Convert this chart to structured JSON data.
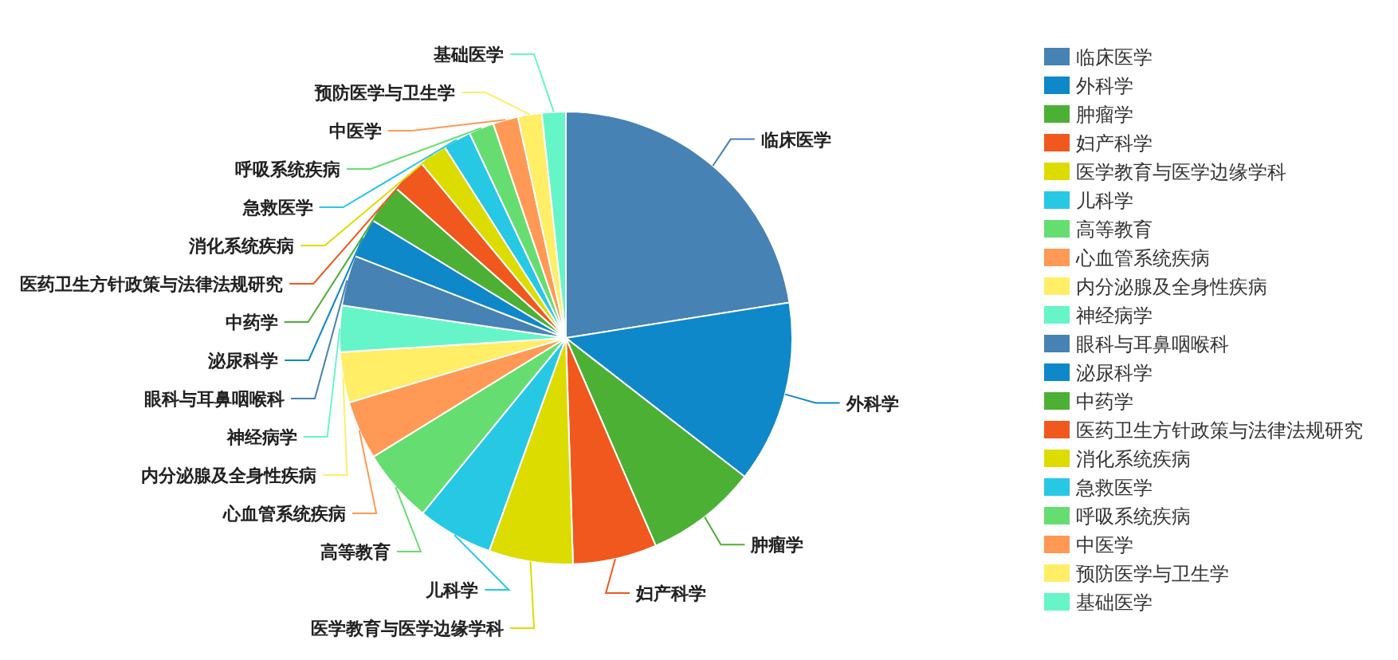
{
  "chart_data": {
    "type": "pie",
    "legend": "right",
    "categories": [
      "临床医学",
      "外科学",
      "肿瘤学",
      "妇产科学",
      "医学教育与医学边缘学科",
      "儿科学",
      "高等教育",
      "心血管系统疾病",
      "内分泌腺及全身性疾病",
      "神经病学",
      "眼科与耳鼻咽喉科",
      "泌尿科学",
      "中药学",
      "医药卫生方针政策与法律法规研究",
      "消化系统疾病",
      "急救医学",
      "呼吸系统疾病",
      "中医学",
      "预防医学与卫生学",
      "基础医学"
    ],
    "values": [
      22.5,
      13,
      8,
      6,
      6,
      5.4,
      5.3,
      4.2,
      3.6,
      3.3,
      3.6,
      2.8,
      2.8,
      2.5,
      2,
      2,
      1.8,
      1.8,
      1.7,
      1.7
    ],
    "colors": [
      "#4682b4",
      "#0e88c8",
      "#4cb034",
      "#f0581e",
      "#dcdc00",
      "#26c8e4",
      "#66dd70",
      "#ff9955",
      "#ffee66",
      "#66f5c8",
      "#4682b4",
      "#0e88c8",
      "#4cb034",
      "#f0581e",
      "#dcdc00",
      "#26c8e4",
      "#66dd70",
      "#ff9955",
      "#ffee66",
      "#66f5c8"
    ]
  }
}
